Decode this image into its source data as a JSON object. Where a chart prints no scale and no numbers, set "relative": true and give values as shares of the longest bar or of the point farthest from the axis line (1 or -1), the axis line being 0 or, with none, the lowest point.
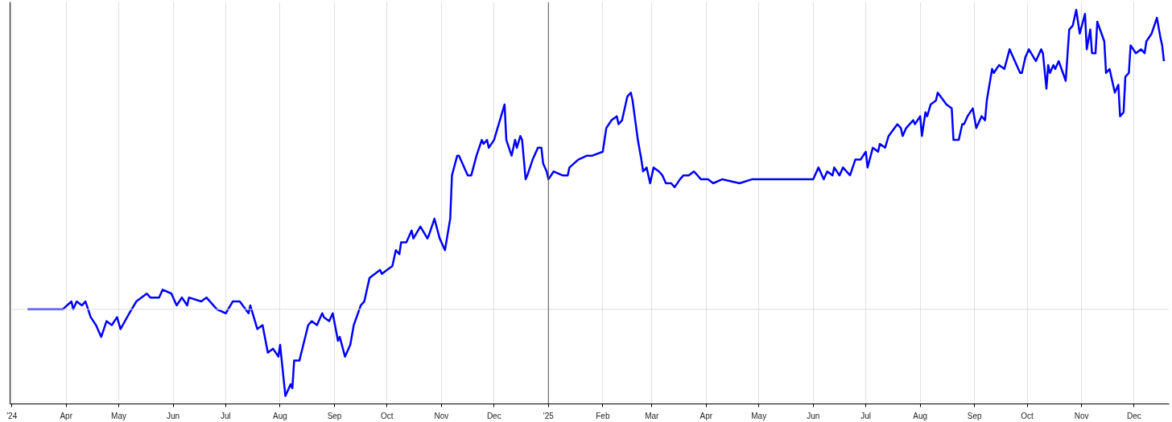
{
  "chart_data": {
    "type": "line",
    "relative": true,
    "grid": "x",
    "xlim": [
      "2024-02-29",
      "2025-12-21"
    ],
    "xticks": [
      {
        "value": "2024-03-01",
        "label": "'24"
      },
      {
        "value": "2024-04-01",
        "label": "Apr"
      },
      {
        "value": "2024-05-01",
        "label": "May"
      },
      {
        "value": "2024-06-01",
        "label": "Jun"
      },
      {
        "value": "2024-07-01",
        "label": "Jul"
      },
      {
        "value": "2024-08-01",
        "label": "Aug"
      },
      {
        "value": "2024-09-01",
        "label": "Sep"
      },
      {
        "value": "2024-10-01",
        "label": "Oct"
      },
      {
        "value": "2024-11-01",
        "label": "Nov"
      },
      {
        "value": "2024-12-01",
        "label": "Dec"
      },
      {
        "value": "2025-01-01",
        "label": "'25"
      },
      {
        "value": "2025-02-01",
        "label": "Feb"
      },
      {
        "value": "2025-03-01",
        "label": "Mar"
      },
      {
        "value": "2025-04-01",
        "label": "Apr"
      },
      {
        "value": "2025-05-01",
        "label": "May"
      },
      {
        "value": "2025-06-01",
        "label": "Jun"
      },
      {
        "value": "2025-07-01",
        "label": "Jul"
      },
      {
        "value": "2025-08-01",
        "label": "Aug"
      },
      {
        "value": "2025-09-01",
        "label": "Sep"
      },
      {
        "value": "2025-10-01",
        "label": "Oct"
      },
      {
        "value": "2025-11-01",
        "label": "Nov"
      },
      {
        "value": "2025-12-01",
        "label": "Dec"
      }
    ],
    "ref_lines": [
      {
        "axis": "y",
        "value": 0.24,
        "color": "#dcdcdc"
      },
      {
        "axis": "x",
        "value": "2025-01-01",
        "color": "#555555"
      }
    ],
    "series": [
      {
        "color": "#0000ff",
        "x": [
          "2024-03-10",
          "2024-03-30",
          "2024-04-04",
          "2024-04-05",
          "2024-04-07",
          "2024-04-10",
          "2024-04-12",
          "2024-04-15",
          "2024-04-18",
          "2024-04-21",
          "2024-04-24",
          "2024-04-27",
          "2024-04-30",
          "2024-05-02",
          "2024-05-07",
          "2024-05-11",
          "2024-05-17",
          "2024-05-19",
          "2024-05-24",
          "2024-05-26",
          "2024-05-31",
          "2024-06-03",
          "2024-06-06",
          "2024-06-09",
          "2024-06-10",
          "2024-06-17",
          "2024-06-20",
          "2024-06-26",
          "2024-07-01",
          "2024-07-05",
          "2024-07-09",
          "2024-07-14",
          "2024-07-15",
          "2024-07-19",
          "2024-07-22",
          "2024-07-25",
          "2024-07-28",
          "2024-07-31",
          "2024-08-01",
          "2024-08-04",
          "2024-08-07",
          "2024-08-08",
          "2024-08-09",
          "2024-08-12",
          "2024-08-17",
          "2024-08-19",
          "2024-08-22",
          "2024-08-25",
          "2024-08-26",
          "2024-08-29",
          "2024-08-31",
          "2024-09-03",
          "2024-09-04",
          "2024-09-07",
          "2024-09-10",
          "2024-09-12",
          "2024-09-16",
          "2024-09-18",
          "2024-09-21",
          "2024-09-27",
          "2024-09-28",
          "2024-10-01",
          "2024-10-04",
          "2024-10-06",
          "2024-10-08",
          "2024-10-09",
          "2024-10-12",
          "2024-10-15",
          "2024-10-16",
          "2024-10-20",
          "2024-10-24",
          "2024-10-25",
          "2024-10-28",
          "2024-10-31",
          "2024-11-03",
          "2024-11-06",
          "2024-11-07",
          "2024-11-10",
          "2024-11-11",
          "2024-11-16",
          "2024-11-18",
          "2024-11-21",
          "2024-11-24",
          "2024-11-25",
          "2024-11-27",
          "2024-11-28",
          "2024-12-01",
          "2024-12-05",
          "2024-12-07",
          "2024-12-08",
          "2024-12-11",
          "2024-12-13",
          "2024-12-14",
          "2024-12-16",
          "2024-12-17",
          "2024-12-19",
          "2024-12-20",
          "2024-12-23",
          "2024-12-26",
          "2024-12-28",
          "2024-12-29",
          "2024-12-31",
          "2025-01-01",
          "2025-01-04",
          "2025-01-09",
          "2025-01-12",
          "2025-01-13",
          "2025-01-18",
          "2025-01-23",
          "2025-01-26",
          "2025-02-01",
          "2025-02-03",
          "2025-02-06",
          "2025-02-09",
          "2025-02-10",
          "2025-02-12",
          "2025-02-15",
          "2025-02-17",
          "2025-02-18",
          "2025-02-21",
          "2025-02-23",
          "2025-02-24",
          "2025-02-26",
          "2025-02-28",
          "2025-03-02",
          "2025-03-05",
          "2025-03-07",
          "2025-03-09",
          "2025-03-12",
          "2025-03-14",
          "2025-03-17",
          "2025-03-19",
          "2025-03-22",
          "2025-03-25",
          "2025-03-29",
          "2025-03-31",
          "2025-04-02",
          "2025-04-05",
          "2025-04-10",
          "2025-04-20",
          "2025-04-27",
          "2025-06-01",
          "2025-06-04",
          "2025-06-07",
          "2025-06-09",
          "2025-06-12",
          "2025-06-13",
          "2025-06-16",
          "2025-06-18",
          "2025-06-22",
          "2025-06-25",
          "2025-06-28",
          "2025-07-01",
          "2025-07-02",
          "2025-07-05",
          "2025-07-08",
          "2025-07-09",
          "2025-07-12",
          "2025-07-14",
          "2025-07-19",
          "2025-07-21",
          "2025-07-22",
          "2025-07-24",
          "2025-07-28",
          "2025-07-29",
          "2025-08-01",
          "2025-08-02",
          "2025-08-04",
          "2025-08-05",
          "2025-08-07",
          "2025-08-10",
          "2025-08-11",
          "2025-08-16",
          "2025-08-19",
          "2025-08-20",
          "2025-08-23",
          "2025-08-25",
          "2025-08-26",
          "2025-08-28",
          "2025-08-31",
          "2025-09-02",
          "2025-09-05",
          "2025-09-07",
          "2025-09-08",
          "2025-09-11",
          "2025-09-12",
          "2025-09-15",
          "2025-09-18",
          "2025-09-21",
          "2025-09-22",
          "2025-09-27",
          "2025-09-28",
          "2025-09-30",
          "2025-10-02",
          "2025-10-06",
          "2025-10-09",
          "2025-10-10",
          "2025-10-12",
          "2025-10-13",
          "2025-10-14",
          "2025-10-16",
          "2025-10-17",
          "2025-10-19",
          "2025-10-23",
          "2025-10-25",
          "2025-10-27",
          "2025-10-29",
          "2025-10-31",
          "2025-11-03",
          "2025-11-04",
          "2025-11-06",
          "2025-11-07",
          "2025-11-09",
          "2025-11-10",
          "2025-11-14",
          "2025-11-15",
          "2025-11-17",
          "2025-11-20",
          "2025-11-22",
          "2025-11-23",
          "2025-11-25",
          "2025-11-26",
          "2025-11-28",
          "2025-11-29",
          "2025-12-02",
          "2025-12-05",
          "2025-12-07",
          "2025-12-08",
          "2025-12-11",
          "2025-12-14",
          "2025-12-16",
          "2025-12-17",
          "2025-12-18"
        ],
        "values": [
          0.24,
          0.24,
          0.26,
          0.24,
          0.26,
          0.25,
          0.26,
          0.22,
          0.2,
          0.17,
          0.21,
          0.2,
          0.22,
          0.19,
          0.23,
          0.26,
          0.28,
          0.27,
          0.27,
          0.29,
          0.28,
          0.25,
          0.27,
          0.25,
          0.27,
          0.26,
          0.27,
          0.24,
          0.23,
          0.26,
          0.26,
          0.23,
          0.25,
          0.19,
          0.2,
          0.13,
          0.14,
          0.12,
          0.15,
          0.02,
          0.05,
          0.04,
          0.11,
          0.11,
          0.2,
          0.21,
          0.2,
          0.23,
          0.22,
          0.21,
          0.23,
          0.16,
          0.17,
          0.12,
          0.15,
          0.2,
          0.25,
          0.26,
          0.32,
          0.34,
          0.33,
          0.34,
          0.35,
          0.39,
          0.38,
          0.41,
          0.41,
          0.44,
          0.42,
          0.45,
          0.42,
          0.43,
          0.47,
          0.42,
          0.39,
          0.47,
          0.58,
          0.63,
          0.63,
          0.58,
          0.58,
          0.63,
          0.67,
          0.66,
          0.67,
          0.65,
          0.67,
          0.73,
          0.76,
          0.67,
          0.63,
          0.67,
          0.65,
          0.68,
          0.67,
          0.57,
          0.58,
          0.62,
          0.65,
          0.65,
          0.61,
          0.59,
          0.57,
          0.59,
          0.58,
          0.58,
          0.6,
          0.62,
          0.63,
          0.63,
          0.64,
          0.7,
          0.72,
          0.73,
          0.71,
          0.72,
          0.78,
          0.79,
          0.77,
          0.67,
          0.62,
          0.59,
          0.6,
          0.56,
          0.6,
          0.59,
          0.58,
          0.56,
          0.56,
          0.55,
          0.57,
          0.58,
          0.58,
          0.59,
          0.57,
          0.57,
          0.57,
          0.56,
          0.57,
          0.56,
          0.57,
          0.57,
          0.6,
          0.57,
          0.59,
          0.58,
          0.6,
          0.58,
          0.6,
          0.58,
          0.62,
          0.62,
          0.64,
          0.6,
          0.65,
          0.64,
          0.66,
          0.65,
          0.68,
          0.71,
          0.7,
          0.68,
          0.7,
          0.72,
          0.71,
          0.73,
          0.68,
          0.74,
          0.73,
          0.76,
          0.77,
          0.79,
          0.76,
          0.75,
          0.67,
          0.67,
          0.71,
          0.71,
          0.73,
          0.75,
          0.7,
          0.73,
          0.72,
          0.77,
          0.85,
          0.84,
          0.86,
          0.85,
          0.9,
          0.89,
          0.84,
          0.84,
          0.88,
          0.9,
          0.87,
          0.9,
          0.89,
          0.8,
          0.86,
          0.84,
          0.86,
          0.85,
          0.87,
          0.82,
          0.95,
          0.96,
          1.0,
          0.94,
          0.99,
          0.9,
          0.95,
          0.89,
          0.89,
          0.97,
          0.92,
          0.84,
          0.85,
          0.79,
          0.81,
          0.73,
          0.74,
          0.83,
          0.84,
          0.91,
          0.89,
          0.9,
          0.89,
          0.92,
          0.94,
          0.98,
          0.93,
          0.91,
          0.87
        ]
      }
    ]
  }
}
